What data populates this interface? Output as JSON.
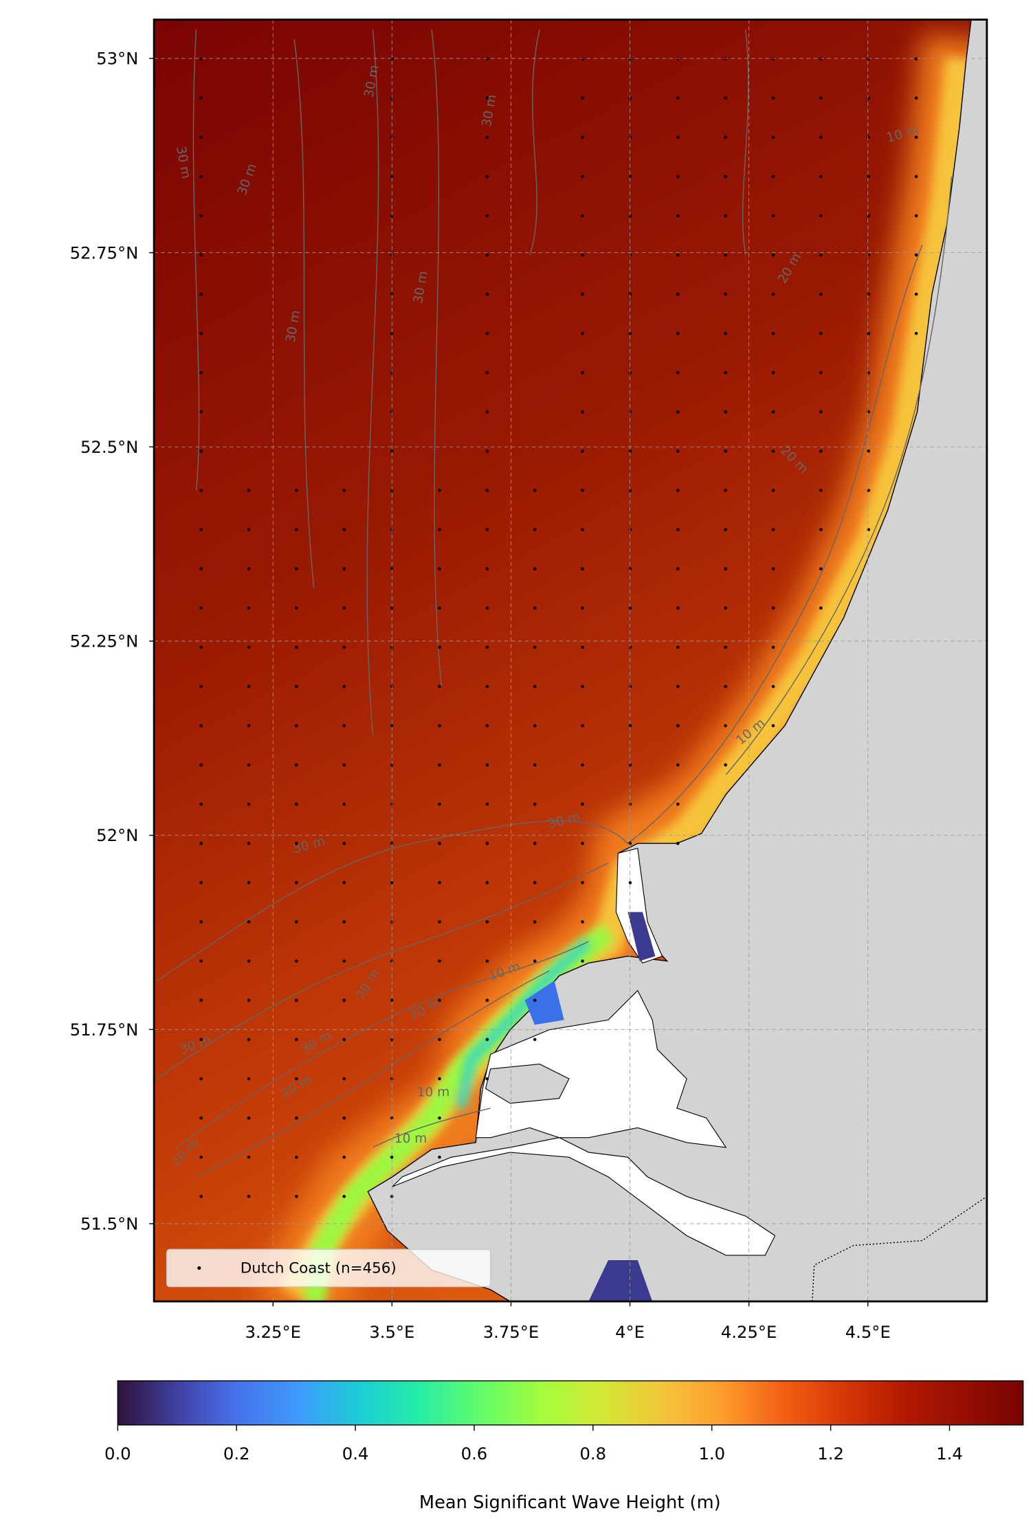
{
  "map": {
    "xlim": [
      3.0,
      4.75
    ],
    "ylim": [
      51.4,
      53.05
    ],
    "xticks": [
      {
        "value": 3.25,
        "label": "3.25°E"
      },
      {
        "value": 3.5,
        "label": "3.5°E"
      },
      {
        "value": 3.75,
        "label": "3.75°E"
      },
      {
        "value": 4,
        "label": "4°E"
      },
      {
        "value": 4.25,
        "label": "4.25°E"
      },
      {
        "value": 4.5,
        "label": "4.5°E"
      }
    ],
    "yticks": [
      {
        "value": 51.5,
        "label": "51.5°N"
      },
      {
        "value": 51.75,
        "label": "51.75°N"
      },
      {
        "value": 52,
        "label": "52°N"
      },
      {
        "value": 52.25,
        "label": "52.25°N"
      },
      {
        "value": 52.5,
        "label": "52.5°N"
      },
      {
        "value": 52.75,
        "label": "52.75°N"
      },
      {
        "value": 53,
        "label": "53°N"
      }
    ],
    "grid": true,
    "contour_labels": [
      "30 m",
      "20 m",
      "10 m"
    ],
    "legend": "Dutch Coast (n=456)"
  },
  "colorbar": {
    "label": "Mean Significant Wave Height (m)",
    "lim": [
      0,
      1.524
    ],
    "ticks": [
      {
        "value": 0,
        "label": "0.0"
      },
      {
        "value": 0.2,
        "label": "0.2"
      },
      {
        "value": 0.4,
        "label": "0.4"
      },
      {
        "value": 0.6,
        "label": "0.6"
      },
      {
        "value": 0.8,
        "label": "0.8"
      },
      {
        "value": 1.0,
        "label": "1.0"
      },
      {
        "value": 1.2,
        "label": "1.2"
      },
      {
        "value": 1.4,
        "label": "1.4"
      }
    ]
  }
}
